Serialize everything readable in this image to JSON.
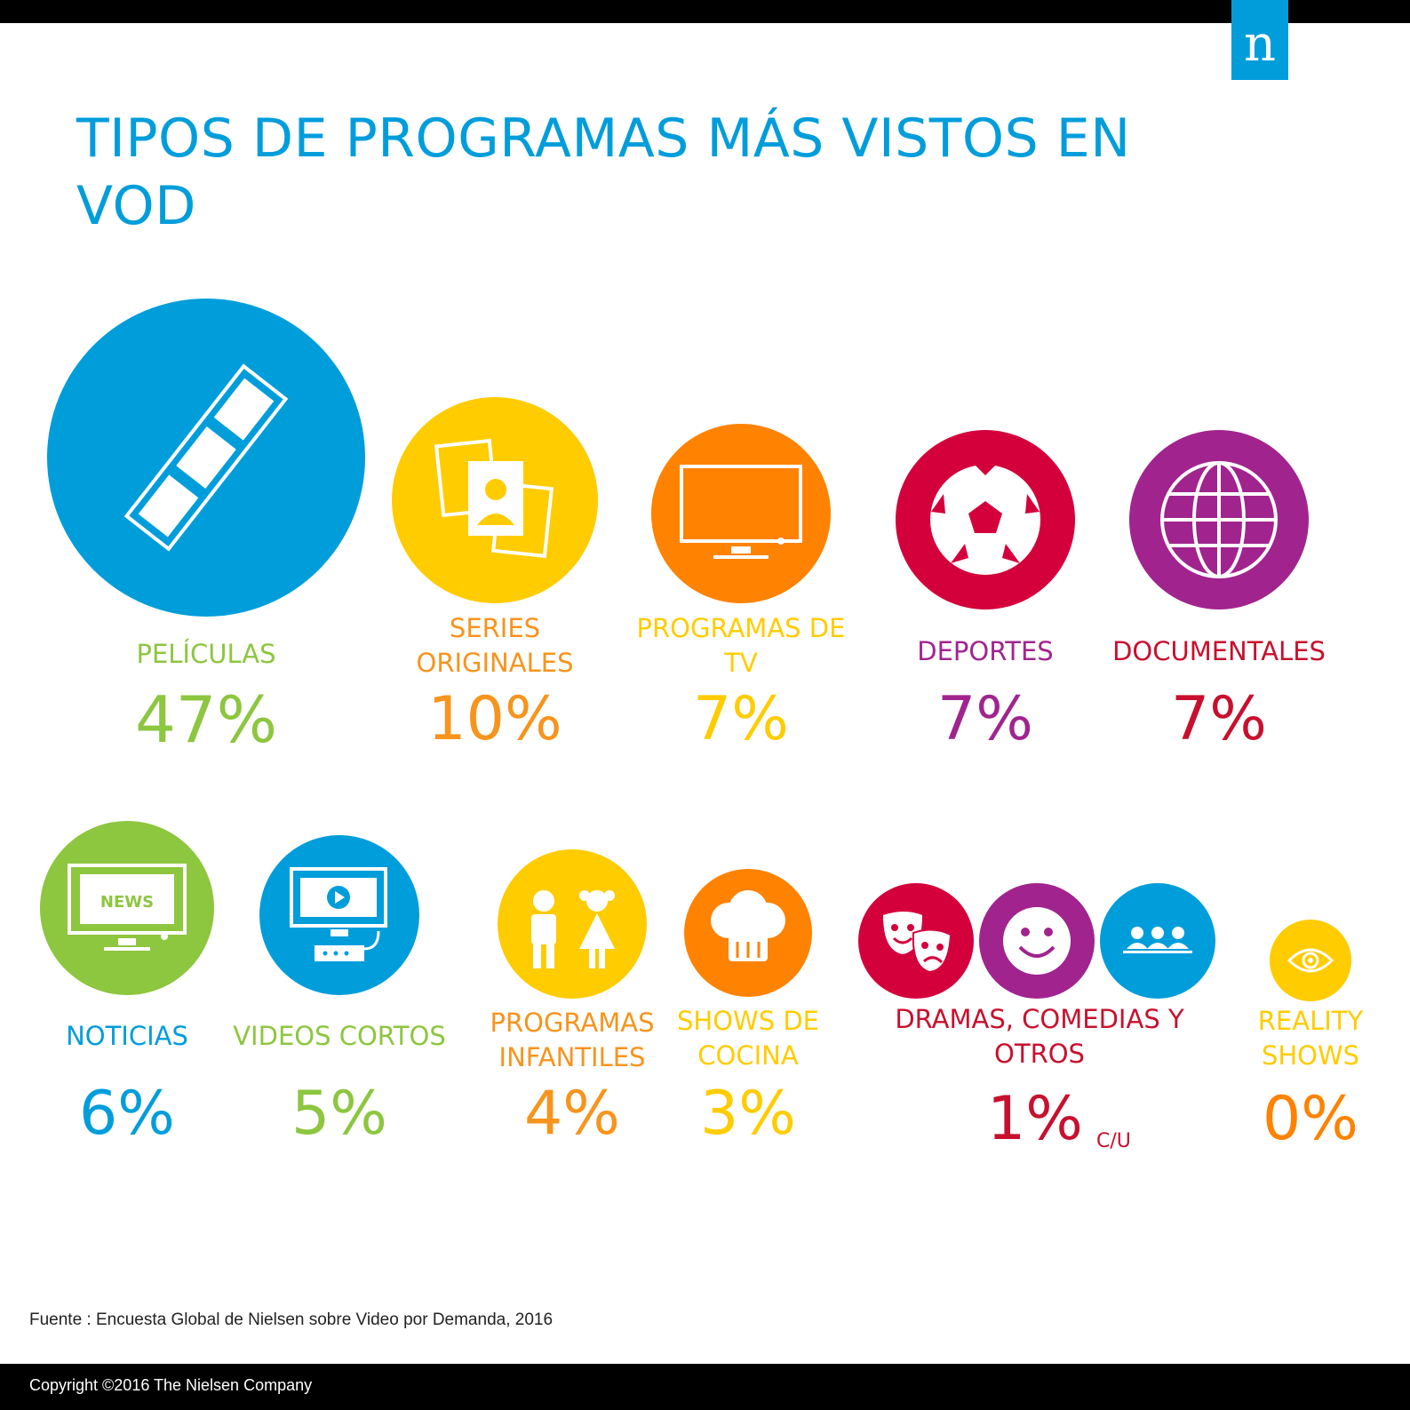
{
  "header": {
    "logo_text": "n"
  },
  "title": "TIPOS DE PROGRAMAS MÁS VISTOS EN VOD",
  "chart_data": {
    "type": "bubble",
    "title": "TIPOS DE PROGRAMAS MÁS VISTOS EN VOD",
    "unit": "%",
    "items": [
      {
        "label": "PELÍCULAS",
        "value": 47,
        "display": "47%",
        "label_color": "#8dc63f",
        "value_color": "#8dc63f",
        "circle_color": "#009ddb",
        "icon": "film-strip-icon"
      },
      {
        "label": "SERIES ORIGINALES",
        "value": 10,
        "display": "10%",
        "label_color": "#f7941d",
        "value_color": "#f7941d",
        "circle_color": "#ffcc00",
        "icon": "photo-portraits-icon"
      },
      {
        "label": "PROGRAMAS DE TV",
        "value": 7,
        "display": "7%",
        "label_color": "#ffcc00",
        "value_color": "#ffcc00",
        "circle_color": "#ff8200",
        "icon": "tv-icon"
      },
      {
        "label": "DEPORTES",
        "value": 7,
        "display": "7%",
        "label_color": "#a1248e",
        "value_color": "#a1248e",
        "circle_color": "#d4003c",
        "icon": "soccer-ball-icon"
      },
      {
        "label": "DOCUMENTALES",
        "value": 7,
        "display": "7%",
        "label_color": "#c8102e",
        "value_color": "#c8102e",
        "circle_color": "#a1248e",
        "icon": "globe-icon"
      },
      {
        "label": "NOTICIAS",
        "value": 6,
        "display": "6%",
        "label_color": "#009ddb",
        "value_color": "#009ddb",
        "circle_color": "#8dc63f",
        "icon": "news-tv-icon"
      },
      {
        "label": "VIDEOS CORTOS",
        "value": 5,
        "display": "5%",
        "label_color": "#8dc63f",
        "value_color": "#8dc63f",
        "circle_color": "#009ddb",
        "icon": "video-monitor-icon"
      },
      {
        "label": "PROGRAMAS INFANTILES",
        "value": 4,
        "display": "4%",
        "label_color": "#f7941d",
        "value_color": "#f7941d",
        "circle_color": "#ffcc00",
        "icon": "children-icon"
      },
      {
        "label": "SHOWS DE COCINA",
        "value": 3,
        "display": "3%",
        "label_color": "#ffcc00",
        "value_color": "#ffcc00",
        "circle_color": "#ff8200",
        "icon": "chef-hat-icon"
      },
      {
        "label": "DRAMAS, COMEDIAS Y OTROS",
        "value": 1,
        "display": "1%",
        "suffix": "C/U",
        "label_color": "#c8102e",
        "value_color": "#c8102e",
        "circle_colors": [
          "#d4003c",
          "#a1248e",
          "#009ddb"
        ],
        "icons": [
          "theater-masks-icon",
          "smiley-icon",
          "audience-icon"
        ]
      },
      {
        "label": "REALITY SHOWS",
        "value": 0,
        "display": "0%",
        "label_color": "#ffcc00",
        "value_color": "#ff8200",
        "circle_color": "#ffcc00",
        "icon": "eye-icon"
      }
    ]
  },
  "source": "Fuente : Encuesta Global de Nielsen sobre  Video por Demanda, 2016",
  "copyright": "Copyright ©2016 The Nielsen Company"
}
